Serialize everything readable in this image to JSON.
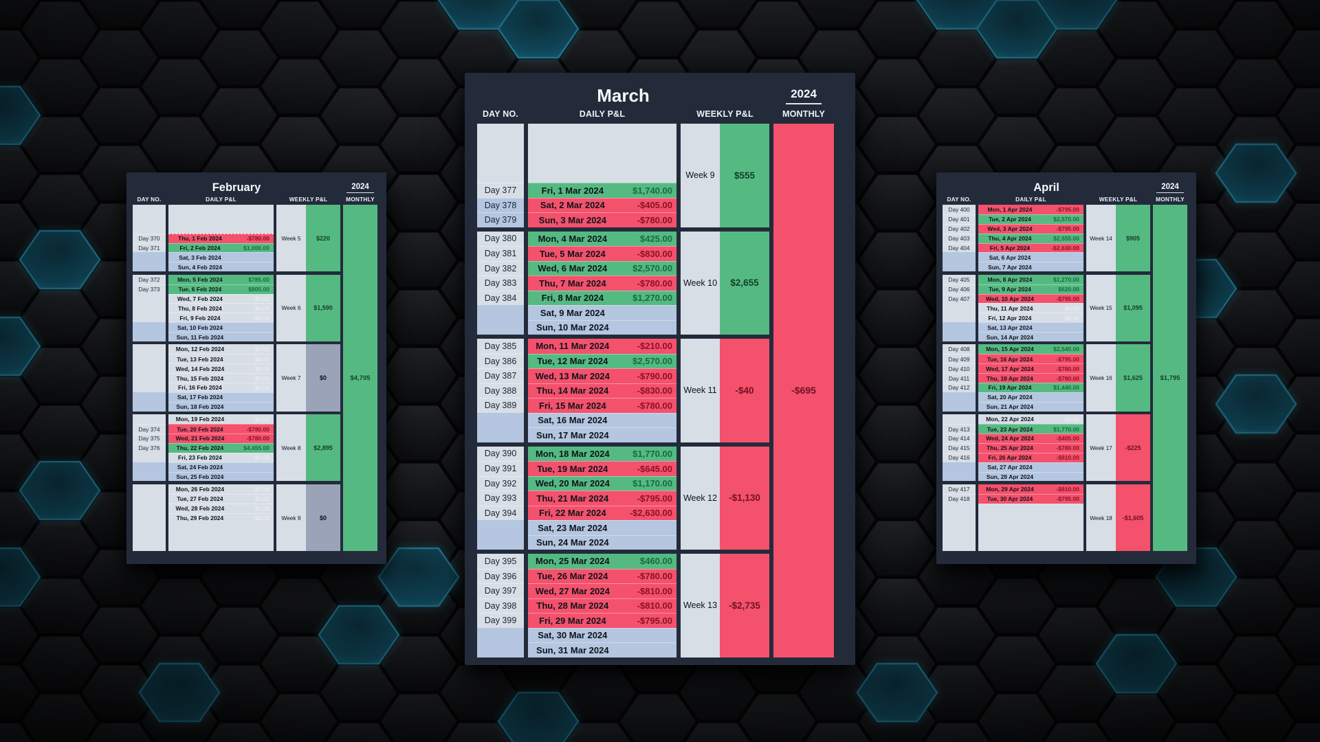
{
  "colors": {
    "panel": "#232b3a",
    "gain": "#55ba82",
    "loss": "#f4516c",
    "weekend": "#b4c6e0",
    "idle": "#d8dee6",
    "zero_week": "#9aa3b8",
    "gain_text": "#186a3f",
    "loss_text": "#8a1226",
    "week_gain_text": "#12402a",
    "week_loss_text": "#701022",
    "dark_text": "#0e131b",
    "day_text": "#1a2433"
  },
  "months": [
    {
      "name": "February",
      "year": "2024",
      "size": "small",
      "headers": {
        "day": "DAY NO.",
        "daily": "DAILY P&L",
        "weekly": "WEEKLY P&L",
        "monthly": "MONTHLY"
      },
      "monthly": {
        "value": "$4,705",
        "state": "green"
      },
      "weeks": [
        {
          "label": "Week 5",
          "value": "$220",
          "state": "green",
          "rows": [
            {
              "type": "empty"
            },
            {
              "type": "empty"
            },
            {
              "type": "empty"
            },
            {
              "type": "loss",
              "day": "Day 370",
              "date": "Thu, 1 Feb 2024",
              "value": "-$780.00",
              "dashed_top": true
            },
            {
              "type": "gain",
              "day": "Day 371",
              "date": "Fri, 2 Feb 2024",
              "value": "$1,000.00"
            },
            {
              "type": "weekend",
              "date": "Sat, 3 Feb 2024"
            },
            {
              "type": "weekend",
              "date": "Sun, 4 Feb 2024"
            }
          ]
        },
        {
          "label": "Week 6",
          "value": "$1,590",
          "state": "green",
          "rows": [
            {
              "type": "gain",
              "day": "Day 372",
              "date": "Mon, 5 Feb 2024",
              "value": "$785.00"
            },
            {
              "type": "gain",
              "day": "Day 373",
              "date": "Tue, 6 Feb 2024",
              "value": "$805.00"
            },
            {
              "type": "zero",
              "date": "Wed, 7 Feb 2024",
              "value": "$0.00"
            },
            {
              "type": "zero",
              "date": "Thu, 8 Feb 2024",
              "value": "$0.00"
            },
            {
              "type": "zero",
              "date": "Fri, 9 Feb 2024",
              "value": "$0.00"
            },
            {
              "type": "weekend",
              "date": "Sat, 10 Feb 2024"
            },
            {
              "type": "weekend",
              "date": "Sun, 11 Feb 2024"
            }
          ]
        },
        {
          "label": "Week 7",
          "value": "$0",
          "state": "zero",
          "rows": [
            {
              "type": "zero",
              "date": "Mon, 12 Feb 2024",
              "value": "$0.00"
            },
            {
              "type": "zero",
              "date": "Tue, 13 Feb 2024",
              "value": "$0.00"
            },
            {
              "type": "zero",
              "date": "Wed, 14 Feb 2024",
              "value": "$0.00"
            },
            {
              "type": "zero",
              "date": "Thu, 15 Feb 2024",
              "value": "$0.00"
            },
            {
              "type": "zero",
              "date": "Fri, 16 Feb 2024",
              "value": "$0.00"
            },
            {
              "type": "weekend",
              "date": "Sat, 17 Feb 2024"
            },
            {
              "type": "weekend",
              "date": "Sun, 18 Feb 2024"
            }
          ]
        },
        {
          "label": "Week 8",
          "value": "$2,895",
          "state": "green",
          "rows": [
            {
              "type": "zero",
              "date": "Mon, 19 Feb 2024",
              "value": "$0.00"
            },
            {
              "type": "loss",
              "day": "Day 374",
              "date": "Tue, 20 Feb 2024",
              "value": "-$780.00"
            },
            {
              "type": "loss",
              "day": "Day 375",
              "date": "Wed, 21 Feb 2024",
              "value": "-$780.00"
            },
            {
              "type": "gain",
              "day": "Day 376",
              "date": "Thu, 22 Feb 2024",
              "value": "$4,455.00"
            },
            {
              "type": "zero",
              "date": "Fri, 23 Feb 2024",
              "value": "$0.00"
            },
            {
              "type": "weekend",
              "date": "Sat, 24 Feb 2024"
            },
            {
              "type": "weekend",
              "date": "Sun, 25 Feb 2024"
            }
          ]
        },
        {
          "label": "Week 9",
          "value": "$0",
          "state": "zero",
          "rows": [
            {
              "type": "zero",
              "date": "Mon, 26 Feb 2024",
              "value": "$0.00"
            },
            {
              "type": "zero",
              "date": "Tue, 27 Feb 2024",
              "value": "$0.00"
            },
            {
              "type": "zero",
              "date": "Wed, 28 Feb 2024",
              "value": "$0.00"
            },
            {
              "type": "zero",
              "date": "Thu, 29 Feb 2024",
              "value": "$0.00"
            },
            {
              "type": "empty"
            },
            {
              "type": "empty"
            },
            {
              "type": "empty"
            }
          ]
        }
      ]
    },
    {
      "name": "March",
      "year": "2024",
      "size": "large",
      "headers": {
        "day": "DAY NO.",
        "daily": "DAILY P&L",
        "weekly": "WEEKLY P&L",
        "monthly": "MONTHLY"
      },
      "monthly": {
        "value": "-$695",
        "state": "red"
      },
      "weeks": [
        {
          "label": "Week 9",
          "value": "$555",
          "state": "green",
          "rows": [
            {
              "type": "empty"
            },
            {
              "type": "empty"
            },
            {
              "type": "empty"
            },
            {
              "type": "empty"
            },
            {
              "type": "gain",
              "day": "Day 377",
              "date": "Fri, 1 Mar 2024",
              "value": "$1,740.00"
            },
            {
              "type": "loss",
              "day": "Day 378",
              "date": "Sat, 2 Mar 2024",
              "value": "-$405.00",
              "day_weekend": true
            },
            {
              "type": "loss",
              "day": "Day 379",
              "date": "Sun, 3 Mar 2024",
              "value": "-$780.00",
              "day_weekend": true
            }
          ]
        },
        {
          "label": "Week 10",
          "value": "$2,655",
          "state": "green",
          "rows": [
            {
              "type": "gain",
              "day": "Day 380",
              "date": "Mon, 4 Mar 2024",
              "value": "$425.00"
            },
            {
              "type": "loss",
              "day": "Day 381",
              "date": "Tue, 5 Mar 2024",
              "value": "-$830.00"
            },
            {
              "type": "gain",
              "day": "Day 382",
              "date": "Wed, 6 Mar 2024",
              "value": "$2,570.00"
            },
            {
              "type": "loss",
              "day": "Day 383",
              "date": "Thu, 7 Mar 2024",
              "value": "-$780.00"
            },
            {
              "type": "gain",
              "day": "Day 384",
              "date": "Fri, 8 Mar 2024",
              "value": "$1,270.00"
            },
            {
              "type": "weekend",
              "date": "Sat, 9 Mar 2024"
            },
            {
              "type": "weekend",
              "date": "Sun, 10 Mar 2024"
            }
          ]
        },
        {
          "label": "Week 11",
          "value": "-$40",
          "state": "red",
          "rows": [
            {
              "type": "loss",
              "day": "Day 385",
              "date": "Mon, 11 Mar 2024",
              "value": "-$210.00"
            },
            {
              "type": "gain",
              "day": "Day 386",
              "date": "Tue, 12 Mar 2024",
              "value": "$2,570.00"
            },
            {
              "type": "loss",
              "day": "Day 387",
              "date": "Wed, 13 Mar 2024",
              "value": "-$790.00"
            },
            {
              "type": "loss",
              "day": "Day 388",
              "date": "Thu, 14 Mar 2024",
              "value": "-$830.00"
            },
            {
              "type": "loss",
              "day": "Day 389",
              "date": "Fri, 15 Mar 2024",
              "value": "-$780.00"
            },
            {
              "type": "weekend",
              "date": "Sat, 16 Mar 2024"
            },
            {
              "type": "weekend",
              "date": "Sun, 17 Mar 2024"
            }
          ]
        },
        {
          "label": "Week 12",
          "value": "-$1,130",
          "state": "red",
          "rows": [
            {
              "type": "gain",
              "day": "Day 390",
              "date": "Mon, 18 Mar 2024",
              "value": "$1,770.00"
            },
            {
              "type": "loss",
              "day": "Day 391",
              "date": "Tue, 19 Mar 2024",
              "value": "-$645.00"
            },
            {
              "type": "gain",
              "day": "Day 392",
              "date": "Wed, 20 Mar 2024",
              "value": "$1,170.00"
            },
            {
              "type": "loss",
              "day": "Day 393",
              "date": "Thu, 21 Mar 2024",
              "value": "-$795.00"
            },
            {
              "type": "loss",
              "day": "Day 394",
              "date": "Fri, 22 Mar 2024",
              "value": "-$2,630.00"
            },
            {
              "type": "weekend",
              "date": "Sat, 23 Mar 2024"
            },
            {
              "type": "weekend",
              "date": "Sun, 24 Mar 2024"
            }
          ]
        },
        {
          "label": "Week 13",
          "value": "-$2,735",
          "state": "red",
          "rows": [
            {
              "type": "gain",
              "day": "Day 395",
              "date": "Mon, 25 Mar 2024",
              "value": "$460.00"
            },
            {
              "type": "loss",
              "day": "Day 396",
              "date": "Tue, 26 Mar 2024",
              "value": "-$780.00"
            },
            {
              "type": "loss",
              "day": "Day 397",
              "date": "Wed, 27 Mar 2024",
              "value": "-$810.00"
            },
            {
              "type": "loss",
              "day": "Day 398",
              "date": "Thu, 28 Mar 2024",
              "value": "-$810.00"
            },
            {
              "type": "loss",
              "day": "Day 399",
              "date": "Fri, 29 Mar 2024",
              "value": "-$795.00"
            },
            {
              "type": "weekend",
              "date": "Sat, 30 Mar 2024"
            },
            {
              "type": "weekend",
              "date": "Sun, 31 Mar 2024"
            }
          ]
        }
      ]
    },
    {
      "name": "April",
      "year": "2024",
      "size": "small",
      "headers": {
        "day": "DAY NO.",
        "daily": "DAILY P&L",
        "weekly": "WEEKLY P&L",
        "monthly": "MONTHLY"
      },
      "monthly": {
        "value": "$1,795",
        "state": "green"
      },
      "weeks": [
        {
          "label": "Week 14",
          "value": "$905",
          "state": "green",
          "rows": [
            {
              "type": "loss",
              "day": "Day 400",
              "date": "Mon, 1 Apr 2024",
              "value": "-$795.00"
            },
            {
              "type": "gain",
              "day": "Day 401",
              "date": "Tue, 2 Apr 2024",
              "value": "$2,570.00"
            },
            {
              "type": "loss",
              "day": "Day 402",
              "date": "Wed, 3 Apr 2024",
              "value": "-$795.00"
            },
            {
              "type": "gain",
              "day": "Day 403",
              "date": "Thu, 4 Apr 2024",
              "value": "$2,555.00"
            },
            {
              "type": "loss",
              "day": "Day 404",
              "date": "Fri, 5 Apr 2024",
              "value": "-$2,630.00"
            },
            {
              "type": "weekend",
              "date": "Sat, 6 Apr 2024"
            },
            {
              "type": "weekend",
              "date": "Sun, 7 Apr 2024"
            }
          ]
        },
        {
          "label": "Week 15",
          "value": "$1,095",
          "state": "green",
          "rows": [
            {
              "type": "gain",
              "day": "Day 405",
              "date": "Mon, 8 Apr 2024",
              "value": "$1,270.00"
            },
            {
              "type": "gain",
              "day": "Day 406",
              "date": "Tue, 9 Apr 2024",
              "value": "$620.00"
            },
            {
              "type": "loss",
              "day": "Day 407",
              "date": "Wed, 10 Apr 2024",
              "value": "-$795.00"
            },
            {
              "type": "zero",
              "date": "Thu, 11 Apr 2024",
              "value": "$0.00"
            },
            {
              "type": "zero",
              "date": "Fri, 12 Apr 2024",
              "value": "$0.00"
            },
            {
              "type": "weekend",
              "date": "Sat, 13 Apr 2024"
            },
            {
              "type": "weekend",
              "date": "Sun, 14 Apr 2024"
            }
          ]
        },
        {
          "label": "Week 16",
          "value": "$1,625",
          "state": "green",
          "rows": [
            {
              "type": "gain",
              "day": "Day 408",
              "date": "Mon, 15 Apr 2024",
              "value": "$2,540.00"
            },
            {
              "type": "loss",
              "day": "Day 409",
              "date": "Tue, 16 Apr 2024",
              "value": "-$795.00"
            },
            {
              "type": "loss",
              "day": "Day 410",
              "date": "Wed, 17 Apr 2024",
              "value": "-$780.00"
            },
            {
              "type": "loss",
              "day": "Day 411",
              "date": "Thu, 18 Apr 2024",
              "value": "-$780.00"
            },
            {
              "type": "gain",
              "day": "Day 412",
              "date": "Fri, 19 Apr 2024",
              "value": "$1,440.00"
            },
            {
              "type": "weekend",
              "date": "Sat, 20 Apr 2024"
            },
            {
              "type": "weekend",
              "date": "Sun, 21 Apr 2024"
            }
          ]
        },
        {
          "label": "Week 17",
          "value": "-$225",
          "state": "red",
          "rows": [
            {
              "type": "zero",
              "date": "Mon, 22 Apr 2024",
              "value": "$0.00"
            },
            {
              "type": "gain",
              "day": "Day 413",
              "date": "Tue, 23 Apr 2024",
              "value": "$1,770.00"
            },
            {
              "type": "loss",
              "day": "Day 414",
              "date": "Wed, 24 Apr 2024",
              "value": "-$405.00"
            },
            {
              "type": "loss",
              "day": "Day 415",
              "date": "Thu, 25 Apr 2024",
              "value": "-$780.00"
            },
            {
              "type": "loss",
              "day": "Day 416",
              "date": "Fri, 26 Apr 2024",
              "value": "-$810.00"
            },
            {
              "type": "weekend",
              "date": "Sat, 27 Apr 2024"
            },
            {
              "type": "weekend",
              "date": "Sun, 28 Apr 2024"
            }
          ]
        },
        {
          "label": "Week 18",
          "value": "-$1,605",
          "state": "red",
          "rows": [
            {
              "type": "loss",
              "day": "Day 417",
              "date": "Mon, 29 Apr 2024",
              "value": "-$810.00"
            },
            {
              "type": "loss",
              "day": "Day 418",
              "date": "Tue, 30 Apr 2024",
              "value": "-$795.00"
            },
            {
              "type": "empty"
            },
            {
              "type": "empty"
            },
            {
              "type": "empty"
            },
            {
              "type": "empty"
            },
            {
              "type": "empty"
            }
          ]
        }
      ]
    }
  ]
}
